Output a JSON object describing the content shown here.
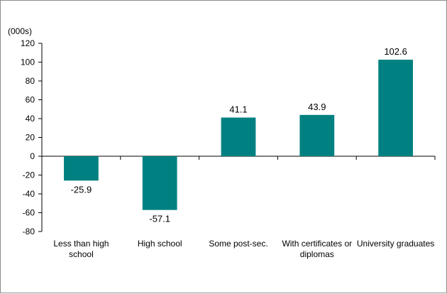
{
  "chart_data": {
    "type": "bar",
    "unit_label": "(000s)",
    "categories": [
      [
        "Less than high",
        "school"
      ],
      [
        "High school"
      ],
      [
        "Some post-sec."
      ],
      [
        "With certificates or",
        "diplomas"
      ],
      [
        "University graduates"
      ]
    ],
    "values": [
      -25.9,
      -57.1,
      41.1,
      43.9,
      102.6
    ],
    "data_labels": [
      "-25.9",
      "-57.1",
      "41.1",
      "43.9",
      "102.6"
    ],
    "ylim": [
      -80,
      120
    ],
    "yticks": [
      120,
      100,
      80,
      60,
      40,
      20,
      0,
      -20,
      -40,
      -60,
      -80
    ],
    "bar_color": "#008080",
    "grid": false,
    "legend": "none"
  }
}
